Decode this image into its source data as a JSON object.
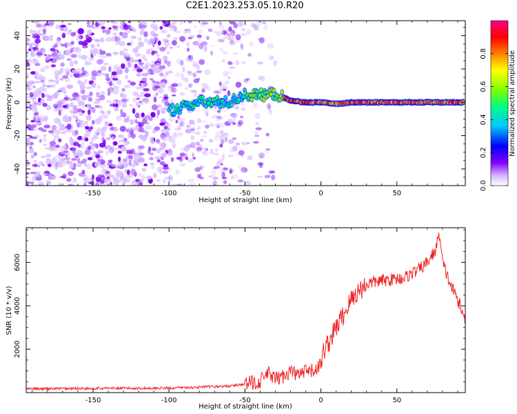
{
  "title": "C2E1.2023.253.05.10.R20",
  "chart_data": [
    {
      "type": "heatmap",
      "title": "",
      "xlabel": "Height of straight line (km)",
      "ylabel": "Frequency (Hz)",
      "xlim": [
        -194,
        95
      ],
      "ylim": [
        -50,
        49
      ],
      "xticks": [
        -150,
        -100,
        -50,
        0,
        50
      ],
      "yticks": [
        -40,
        -20,
        0,
        20,
        40
      ],
      "colorbar": {
        "label": "Normalized spectral amplitude",
        "range": [
          0.0,
          1.0
        ],
        "ticks": [
          0.0,
          0.2,
          0.4,
          0.6,
          0.8
        ],
        "colormap": "rainbow",
        "colors": [
          "#ffffff",
          "#8000ff",
          "#0000ff",
          "#00c8ff",
          "#00ff80",
          "#80ff00",
          "#ffff00",
          "#ff8000",
          "#ff0000",
          "#ff0080"
        ]
      },
      "ridge": {
        "description_points": [
          {
            "x": -100,
            "y": -5
          },
          {
            "x": -80,
            "y": 0
          },
          {
            "x": -60,
            "y": 0
          },
          {
            "x": -50,
            "y": 5
          },
          {
            "x": -45,
            "y": 4
          },
          {
            "x": -30,
            "y": 5
          },
          {
            "x": -20,
            "y": 1
          },
          {
            "x": -10,
            "y": 0
          },
          {
            "x": 0,
            "y": 0
          },
          {
            "x": 10,
            "y": -1
          },
          {
            "x": 20,
            "y": 0
          },
          {
            "x": 50,
            "y": 0
          },
          {
            "x": 95,
            "y": 0
          }
        ]
      }
    },
    {
      "type": "line",
      "title": "",
      "xlabel": "Height of straight line (km)",
      "ylabel": "SNR (10 * v/v)",
      "xlim": [
        -194,
        95
      ],
      "ylim": [
        0,
        7600
      ],
      "xticks": [
        -150,
        -100,
        -50,
        0,
        50
      ],
      "yticks": [
        2000,
        4000,
        6000
      ],
      "series": [
        {
          "color": "#ee2222",
          "x": [
            -194,
            -180,
            -160,
            -140,
            -120,
            -100,
            -80,
            -60,
            -50,
            -40,
            -35,
            -30,
            -25,
            -20,
            -15,
            -10,
            -5,
            0,
            2,
            5,
            10,
            15,
            20,
            25,
            30,
            35,
            40,
            45,
            50,
            55,
            60,
            65,
            70,
            75,
            78,
            80,
            85,
            90,
            95
          ],
          "y": [
            170,
            180,
            190,
            200,
            200,
            210,
            250,
            300,
            400,
            520,
            900,
            600,
            750,
            1000,
            800,
            950,
            1000,
            1300,
            2000,
            2300,
            3000,
            3600,
            4300,
            4700,
            5000,
            5100,
            5150,
            5200,
            5250,
            5300,
            5500,
            5700,
            6000,
            6500,
            7300,
            6000,
            5000,
            4300,
            3300
          ]
        }
      ]
    }
  ]
}
